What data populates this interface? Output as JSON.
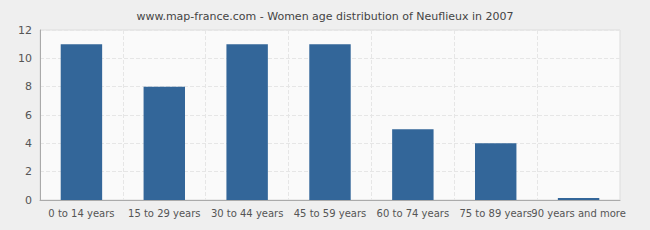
{
  "chart_data": {
    "type": "bar",
    "title": "www.map-france.com - Women age distribution of Neuflieux in 2007",
    "categories": [
      "0 to 14 years",
      "15 to 29 years",
      "30 to 44 years",
      "45 to 59 years",
      "60 to 74 years",
      "75 to 89 years",
      "90 years and more"
    ],
    "values": [
      11,
      8,
      11,
      11,
      5,
      4,
      0
    ],
    "color": "#336699",
    "ylim": [
      0,
      12
    ],
    "yticks": [
      0,
      2,
      4,
      6,
      8,
      10,
      12
    ],
    "grid": true
  }
}
